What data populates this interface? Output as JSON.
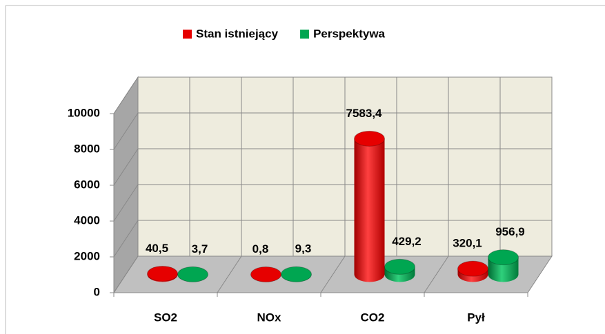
{
  "chart_data": {
    "type": "bar3d",
    "categories": [
      "SO2",
      "NOx",
      "CO2",
      "Pył"
    ],
    "series": [
      {
        "name": "Stan istniejący",
        "color": "#e60000",
        "values": [
          40.5,
          0.8,
          7583.4,
          320.1
        ],
        "value_labels": [
          "40,5",
          "0,8",
          "7583,4",
          "320,1"
        ]
      },
      {
        "name": "Perspektywa",
        "color": "#00a651",
        "values": [
          3.7,
          9.3,
          429.2,
          956.9
        ],
        "value_labels": [
          "3,7",
          "9,3",
          "429,2",
          "956,9"
        ]
      }
    ],
    "ylim": [
      0,
      10000
    ],
    "yticks": [
      0,
      2000,
      4000,
      6000,
      8000,
      10000
    ],
    "grid": true,
    "legend": "top"
  }
}
